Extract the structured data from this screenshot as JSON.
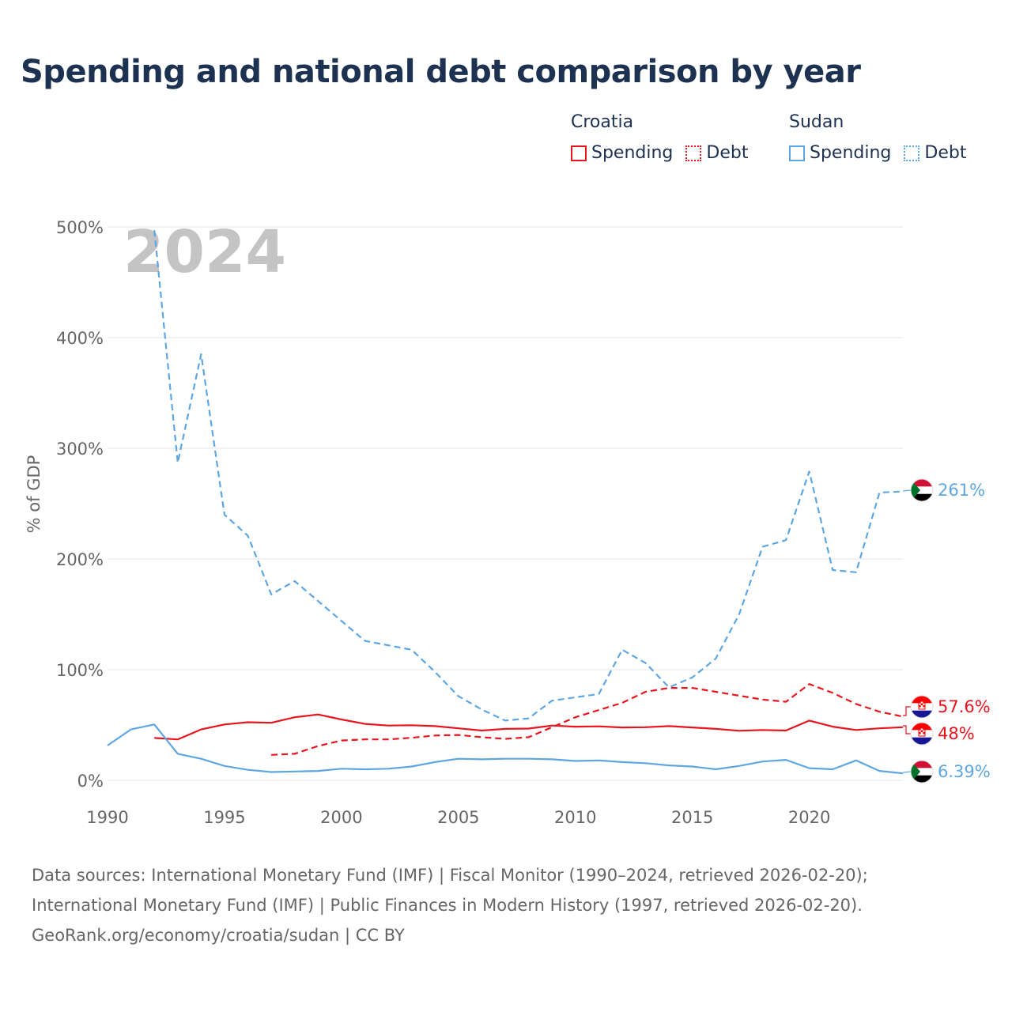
{
  "title": "Spending and national debt comparison by year",
  "legend": {
    "groups": [
      {
        "country": "Croatia",
        "color": "#e8141e",
        "items": [
          "Spending",
          "Debt"
        ]
      },
      {
        "country": "Sudan",
        "color": "#5ea6e2",
        "items": [
          "Spending",
          "Debt"
        ]
      }
    ]
  },
  "year_watermark": "2024",
  "footer": {
    "line1": "Data sources: International Monetary Fund (IMF) | Fiscal Monitor (1990–2024, retrieved 2026-02-20);",
    "line2": "International Monetary Fund (IMF) | Public Finances in Modern History (1997, retrieved 2026-02-20).",
    "line3": "GeoRank.org/economy/croatia/sudan | CC BY"
  },
  "end_labels": {
    "sudan_debt": "261%",
    "croatia_debt": "57.6%",
    "croatia_spending": "48%",
    "sudan_spending": "6.39%"
  },
  "chart_data": {
    "type": "line",
    "title": "Spending and national debt comparison by year",
    "xlabel": "",
    "ylabel": "% of GDP",
    "xlim": [
      1990,
      2024
    ],
    "ylim": [
      0,
      500
    ],
    "x_ticks": [
      1990,
      1995,
      2000,
      2005,
      2010,
      2015,
      2020
    ],
    "y_ticks": [
      0,
      100,
      200,
      300,
      400,
      500
    ],
    "y_tick_labels": [
      "0%",
      "100%",
      "200%",
      "300%",
      "400%",
      "500%"
    ],
    "grid": true,
    "series": [
      {
        "name": "Croatia Spending",
        "color": "#e8141e",
        "dash": "solid",
        "x": [
          1992,
          1993,
          1994,
          1995,
          1996,
          1997,
          1998,
          1999,
          2000,
          2001,
          2002,
          2003,
          2004,
          2005,
          2006,
          2007,
          2008,
          2009,
          2010,
          2011,
          2012,
          2013,
          2014,
          2015,
          2016,
          2017,
          2018,
          2019,
          2020,
          2021,
          2022,
          2023,
          2024
        ],
        "values": [
          38.3,
          37,
          46,
          50.5,
          52.5,
          52,
          57,
          59.5,
          55,
          51,
          49.5,
          49.8,
          49,
          47,
          45,
          46.5,
          46.8,
          49.5,
          48.5,
          48.8,
          47.8,
          48,
          49,
          47.8,
          46.5,
          44.8,
          45.5,
          45,
          54,
          48.5,
          45.5,
          47,
          48
        ]
      },
      {
        "name": "Croatia Debt",
        "color": "#e8141e",
        "dash": "dashed",
        "x": [
          1997,
          1998,
          1999,
          2000,
          2001,
          2002,
          2003,
          2004,
          2005,
          2006,
          2007,
          2008,
          2009,
          2010,
          2011,
          2012,
          2013,
          2014,
          2015,
          2016,
          2017,
          2018,
          2019,
          2020,
          2021,
          2022,
          2023,
          2024
        ],
        "values": [
          23,
          24,
          31,
          36,
          37,
          37,
          38.5,
          40.5,
          41,
          39,
          37.5,
          39,
          48,
          57,
          63.5,
          70,
          80,
          83.5,
          83.5,
          80,
          76.5,
          73,
          71,
          87,
          79,
          69,
          62,
          57.6
        ]
      },
      {
        "name": "Sudan Spending",
        "color": "#5ea6e2",
        "dash": "solid",
        "x": [
          1990,
          1991,
          1992,
          1993,
          1994,
          1995,
          1996,
          1997,
          1998,
          1999,
          2000,
          2001,
          2002,
          2003,
          2004,
          2005,
          2006,
          2007,
          2008,
          2009,
          2010,
          2011,
          2012,
          2013,
          2014,
          2015,
          2016,
          2017,
          2018,
          2019,
          2020,
          2021,
          2022,
          2023,
          2024
        ],
        "values": [
          31.5,
          46,
          50.5,
          24,
          19.5,
          13,
          9.5,
          7.5,
          8,
          8.5,
          10.5,
          10,
          10.5,
          12.5,
          16.5,
          19.5,
          19,
          19.5,
          19.5,
          19,
          17.5,
          18,
          16.5,
          15.5,
          13.5,
          12.5,
          10,
          13,
          17,
          18.5,
          11,
          10,
          18,
          8.5,
          6.39
        ]
      },
      {
        "name": "Sudan Debt",
        "color": "#5ea6e2",
        "dash": "dashed",
        "x": [
          1992,
          1993,
          1994,
          1995,
          1996,
          1997,
          1998,
          1999,
          2000,
          2001,
          2002,
          2003,
          2004,
          2005,
          2006,
          2007,
          2008,
          2009,
          2010,
          2011,
          2012,
          2013,
          2014,
          2015,
          2016,
          2017,
          2018,
          2019,
          2020,
          2021,
          2022,
          2023,
          2024
        ],
        "values": [
          497,
          287,
          385,
          240,
          221,
          168,
          180,
          162,
          144,
          126,
          122,
          118,
          98,
          76,
          64,
          54,
          56,
          72,
          75,
          78,
          118,
          106,
          84,
          93,
          110,
          150,
          211,
          217,
          279,
          190,
          188,
          260,
          261
        ]
      }
    ]
  }
}
